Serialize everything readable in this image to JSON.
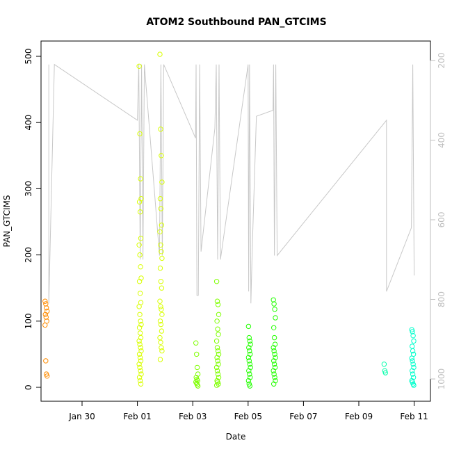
{
  "chart_data": {
    "type": "scatter",
    "title": "ATOM2 Southbound PAN_GTCIMS",
    "xlabel": "Date",
    "ylabel": "PAN_GTCIMS",
    "x_ticks": [
      "Jan 30",
      "Feb 01",
      "Feb 03",
      "Feb 05",
      "Feb 07",
      "Feb 09",
      "Feb 11"
    ],
    "y_ticks": [
      "0",
      "100",
      "200",
      "300",
      "400",
      "500"
    ],
    "y2_ticks": [
      "200",
      "400",
      "600",
      "800",
      "1000"
    ],
    "ylim": [
      0,
      500
    ],
    "y2_inverted": true,
    "grid": false,
    "secondary_line_color": "#c8c8c8",
    "point_groups": [
      {
        "x": 28.7,
        "color": "#ff8c00",
        "values": [
          130,
          126,
          120,
          115,
          110,
          106,
          100,
          94,
          40,
          20,
          17
        ]
      },
      {
        "x": 32.1,
        "color": "#d9ff00",
        "values": [
          485,
          383,
          315,
          285,
          280,
          265,
          225,
          215,
          200,
          182,
          165,
          160,
          142,
          128,
          122,
          110,
          100,
          95,
          90,
          82,
          75,
          70,
          65,
          60,
          55,
          50,
          45,
          40,
          35,
          30,
          25,
          20,
          15,
          10,
          5
        ]
      },
      {
        "x": 32.85,
        "color": "#d9ff00",
        "values": [
          503,
          390,
          350,
          310,
          285,
          270,
          245,
          235,
          215,
          205,
          195,
          180,
          160,
          150,
          130,
          122,
          118,
          110,
          100,
          95,
          85,
          75,
          68,
          60,
          55,
          42
        ]
      },
      {
        "x": 34.15,
        "color": "#7fff00",
        "values": [
          67,
          50,
          30,
          20,
          15,
          12,
          10,
          8,
          6,
          4,
          2
        ]
      },
      {
        "x": 34.9,
        "color": "#7fff00",
        "values": [
          160,
          130,
          125,
          110,
          100,
          88,
          80,
          70,
          60,
          55,
          50,
          45,
          40,
          35,
          30,
          25,
          20,
          15,
          10,
          8,
          5,
          3
        ]
      },
      {
        "x": 36.05,
        "color": "#22ff00",
        "values": [
          92,
          75,
          70,
          65,
          60,
          55,
          50,
          45,
          40,
          35,
          30,
          25,
          20,
          15,
          10,
          5,
          2
        ]
      },
      {
        "x": 36.95,
        "color": "#22ff00",
        "values": [
          132,
          126,
          118,
          105,
          90,
          75,
          65,
          60,
          55,
          50,
          45,
          40,
          35,
          30,
          25,
          20,
          15,
          10,
          5
        ]
      },
      {
        "x": 40.95,
        "color": "#00ffaa",
        "values": [
          35,
          25,
          22
        ]
      },
      {
        "x": 41.95,
        "color": "#00ffcc",
        "values": [
          87,
          84,
          78,
          70,
          62,
          55,
          50,
          44,
          40,
          35,
          30,
          25,
          20,
          15,
          10,
          8,
          5,
          3
        ]
      }
    ],
    "secondary_line": [
      {
        "x": 28.8,
        "y2": 210
      },
      {
        "x": 28.8,
        "y2": 810
      },
      {
        "x": 29.0,
        "y2": 210
      },
      {
        "x": 32.0,
        "y2": 350
      },
      {
        "x": 32.05,
        "y2": 210
      },
      {
        "x": 32.1,
        "y2": 700
      },
      {
        "x": 32.15,
        "y2": 210
      },
      {
        "x": 32.2,
        "y2": 700
      },
      {
        "x": 32.25,
        "y2": 210
      },
      {
        "x": 32.8,
        "y2": 690
      },
      {
        "x": 32.85,
        "y2": 210
      },
      {
        "x": 32.9,
        "y2": 690
      },
      {
        "x": 32.95,
        "y2": 210
      },
      {
        "x": 34.1,
        "y2": 395
      },
      {
        "x": 34.12,
        "y2": 210
      },
      {
        "x": 34.15,
        "y2": 790
      },
      {
        "x": 34.2,
        "y2": 790
      },
      {
        "x": 34.25,
        "y2": 210
      },
      {
        "x": 34.3,
        "y2": 680
      },
      {
        "x": 34.8,
        "y2": 370
      },
      {
        "x": 34.85,
        "y2": 210
      },
      {
        "x": 34.9,
        "y2": 700
      },
      {
        "x": 34.95,
        "y2": 210
      },
      {
        "x": 35.0,
        "y2": 700
      },
      {
        "x": 36.0,
        "y2": 210
      },
      {
        "x": 36.02,
        "y2": 780
      },
      {
        "x": 36.05,
        "y2": 210
      },
      {
        "x": 36.1,
        "y2": 810
      },
      {
        "x": 36.15,
        "y2": 670
      },
      {
        "x": 36.3,
        "y2": 340
      },
      {
        "x": 36.9,
        "y2": 325
      },
      {
        "x": 36.92,
        "y2": 210
      },
      {
        "x": 36.95,
        "y2": 690
      },
      {
        "x": 37.0,
        "y2": 210
      },
      {
        "x": 37.05,
        "y2": 690
      },
      {
        "x": 41.0,
        "y2": 350
      },
      {
        "x": 41.0,
        "y2": 780
      },
      {
        "x": 41.9,
        "y2": 620
      },
      {
        "x": 41.95,
        "y2": 210
      },
      {
        "x": 42.0,
        "y2": 740
      }
    ]
  }
}
